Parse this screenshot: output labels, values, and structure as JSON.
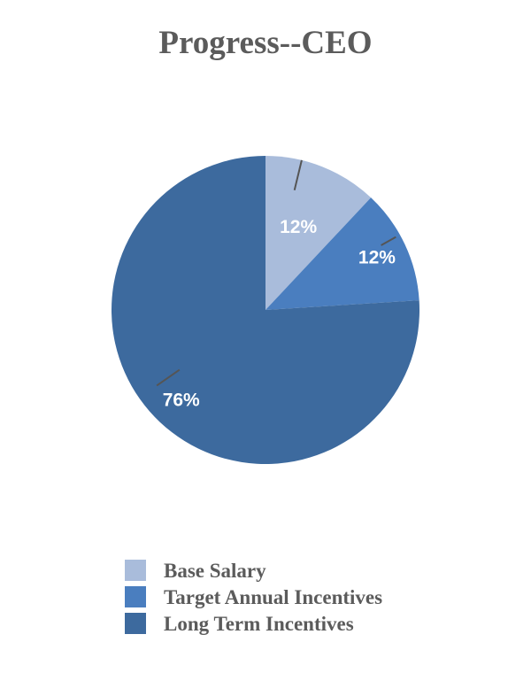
{
  "chart_data": {
    "type": "pie",
    "title": "Progress--CEO",
    "slices": [
      {
        "name": "Base Salary",
        "value": 12,
        "label": "12%",
        "color": "#a9bcdb"
      },
      {
        "name": "Target Annual Incentives",
        "value": 12,
        "label": "12%",
        "color": "#4a7ebf"
      },
      {
        "name": "Long Term Incentives",
        "value": 76,
        "label": "76%",
        "color": "#3d6a9e"
      }
    ],
    "start_angle_deg": 0,
    "direction": "clockwise",
    "legend": {
      "placement": "bottom"
    }
  }
}
